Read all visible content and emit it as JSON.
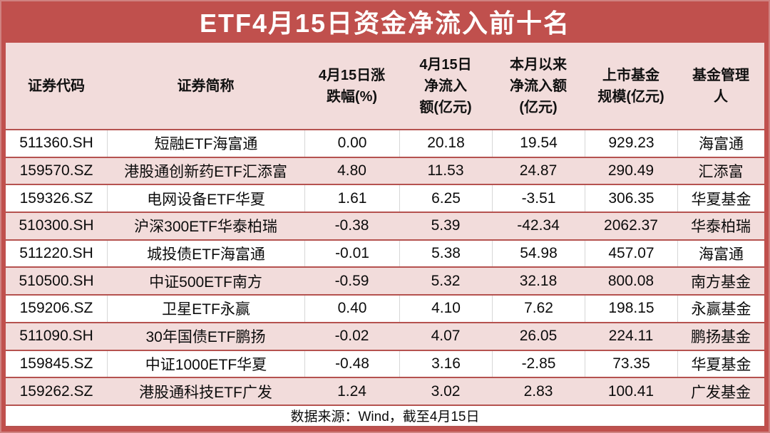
{
  "title": "ETF4月15日资金净流入前十名",
  "source_note": "数据来源：Wind，截至4月15日",
  "colors": {
    "accent_red": "#c0504d",
    "divider_red": "#b5524f",
    "row_pink": "#f2dcdb",
    "row_white": "#ffffff",
    "title_text": "#ffffff",
    "body_text": "#0c0c0c"
  },
  "chart_data": {
    "type": "table",
    "title": "ETF4月15日资金净流入前十名",
    "columns": [
      "证券代码",
      "证券简称",
      "4月15日涨\n跌幅(%)",
      "4月15日\n净流入\n额(亿元)",
      "本月以来\n净流入额\n(亿元)",
      "上市基金\n规模(亿元)",
      "基金管理\n人"
    ],
    "rows": [
      [
        "511360.SH",
        "短融ETF海富通",
        "0.00",
        "20.18",
        "19.54",
        "929.23",
        "海富通"
      ],
      [
        "159570.SZ",
        "港股通创新药ETF汇添富",
        "4.80",
        "11.53",
        "24.87",
        "290.49",
        "汇添富"
      ],
      [
        "159326.SZ",
        "电网设备ETF华夏",
        "1.61",
        "6.25",
        "-3.51",
        "306.35",
        "华夏基金"
      ],
      [
        "510300.SH",
        "沪深300ETF华泰柏瑞",
        "-0.38",
        "5.39",
        "-42.34",
        "2062.37",
        "华泰柏瑞"
      ],
      [
        "511220.SH",
        "城投债ETF海富通",
        "-0.01",
        "5.38",
        "54.98",
        "457.07",
        "海富通"
      ],
      [
        "510500.SH",
        "中证500ETF南方",
        "-0.59",
        "5.32",
        "32.18",
        "800.08",
        "南方基金"
      ],
      [
        "159206.SZ",
        "卫星ETF永赢",
        "0.40",
        "4.10",
        "7.62",
        "198.15",
        "永赢基金"
      ],
      [
        "511090.SH",
        "30年国债ETF鹏扬",
        "-0.02",
        "4.07",
        "26.05",
        "224.11",
        "鹏扬基金"
      ],
      [
        "159845.SZ",
        "中证1000ETF华夏",
        "-0.48",
        "3.16",
        "-2.85",
        "73.35",
        "华夏基金"
      ],
      [
        "159262.SZ",
        "港股通科技ETF广发",
        "1.24",
        "3.02",
        "2.83",
        "100.41",
        "广发基金"
      ]
    ],
    "source_note": "数据来源：Wind，截至4月15日"
  }
}
